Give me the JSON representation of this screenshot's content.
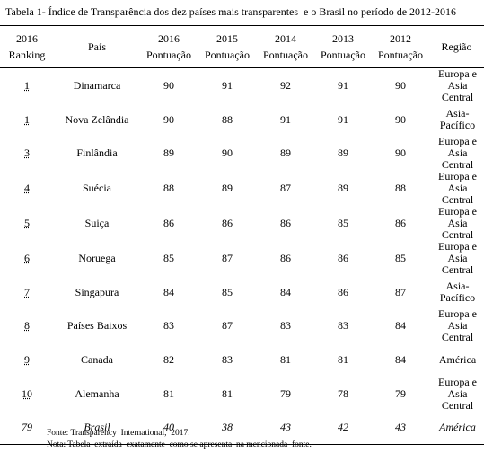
{
  "title": "Tabela 1- Índice de Transparência dos dez países mais transparentes  e o Brasil no período de 2012-2016",
  "table": {
    "header": [
      [
        "2016",
        "Ranking"
      ],
      [
        "País"
      ],
      [
        "2016",
        "Pontuação"
      ],
      [
        "2015",
        "Pontuação"
      ],
      [
        "2014",
        "Pontuação"
      ],
      [
        "2013",
        "Pontuação"
      ],
      [
        "2012",
        "Pontuação"
      ],
      [
        "Região"
      ]
    ],
    "rows": [
      [
        "1",
        "Dinamarca",
        "90",
        "91",
        "92",
        "91",
        "90",
        "Europa e Asia Central"
      ],
      [
        "1",
        "Nova Zelândia",
        "90",
        "88",
        "91",
        "91",
        "90",
        "Asia-Pacífico"
      ],
      [
        "3",
        "Finlândia",
        "89",
        "90",
        "89",
        "89",
        "90",
        "Europa e Asia Central"
      ],
      [
        "4",
        "Suécia",
        "88",
        "89",
        "87",
        "89",
        "88",
        "Europa e Asia Central"
      ],
      [
        "5",
        "Suiça",
        "86",
        "86",
        "86",
        "85",
        "86",
        "Europa e Asia Central"
      ],
      [
        "6",
        "Noruega",
        "85",
        "87",
        "86",
        "86",
        "85",
        "Europa e Asia Central"
      ],
      [
        "7",
        "Singapura",
        "84",
        "85",
        "84",
        "86",
        "87",
        "Asia-Pacífico"
      ],
      [
        "8",
        "Países Baixos",
        "83",
        "87",
        "83",
        "83",
        "84",
        "Europa e Asia Central"
      ],
      [
        "9",
        "Canada",
        "82",
        "83",
        "81",
        "81",
        "84",
        "América"
      ],
      [
        "10",
        "Alemanha",
        "81",
        "81",
        "79",
        "78",
        "79",
        "Europa e Asia Central"
      ],
      [
        "79",
        "Brasil",
        "40",
        "38",
        "43",
        "42",
        "43",
        "América"
      ]
    ]
  },
  "footnotes": [
    "Fonte: Transparency  International,  2017.",
    "Nota: Tabela  extraída  exatamente  como se apresenta  na mencionada  fonte."
  ]
}
